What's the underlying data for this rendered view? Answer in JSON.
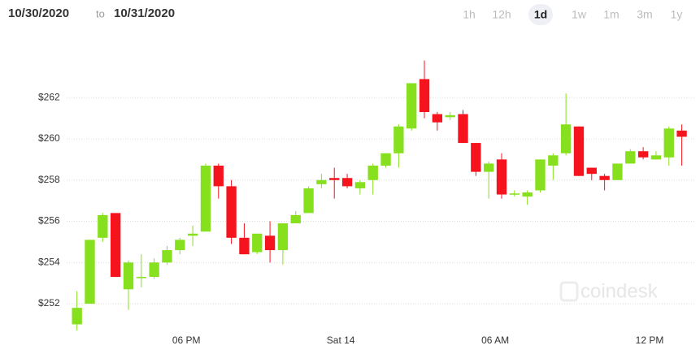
{
  "header": {
    "from": "10/30/2020",
    "to_word": "to",
    "to": "10/31/2020",
    "ranges": [
      "1h",
      "12h",
      "1d",
      "1w",
      "1m",
      "3m",
      "1y"
    ],
    "active": "1d"
  },
  "chart_data": {
    "type": "candlestick",
    "watermark": "coindesk",
    "up_color": "#86e01e",
    "down_color": "#f5141e",
    "grid": true,
    "x": [
      13.75,
      14.25,
      14.75,
      15.25,
      15.75,
      16.25,
      16.75,
      17.25,
      17.75,
      18.25,
      18.75,
      19.25,
      19.75,
      20.25,
      20.75,
      21.25,
      21.75,
      22.25,
      22.75,
      23.25,
      23.75,
      24.25,
      24.75,
      25.25,
      25.75,
      26.25,
      26.75,
      27.25,
      27.75,
      28.25,
      28.75,
      29.25,
      29.75,
      30.25,
      30.75,
      31.25,
      31.75,
      32.25,
      32.75,
      33.25,
      33.75,
      34.25,
      34.75,
      35.25,
      35.75,
      36.25,
      36.75,
      37.25
    ],
    "open": [
      251.0,
      252.0,
      255.2,
      256.4,
      252.7,
      253.3,
      253.3,
      254.0,
      254.6,
      255.3,
      255.5,
      258.7,
      257.7,
      255.2,
      254.5,
      255.3,
      254.6,
      255.9,
      256.4,
      257.8,
      258.1,
      258.1,
      257.6,
      258.0,
      258.7,
      259.3,
      260.5,
      262.9,
      261.2,
      261.05,
      261.2,
      259.8,
      258.4,
      259.0,
      257.3,
      257.2,
      257.5,
      258.7,
      259.3,
      260.6,
      258.6,
      258.2,
      258.0,
      258.8,
      259.4,
      259.0,
      259.1,
      260.4
    ],
    "high": [
      252.6,
      255.1,
      256.4,
      256.4,
      254.1,
      254.4,
      254.2,
      254.8,
      255.2,
      255.8,
      258.8,
      258.8,
      258.0,
      255.9,
      255.4,
      256.0,
      255.9,
      256.5,
      257.7,
      258.3,
      258.6,
      258.3,
      258.0,
      258.8,
      259.3,
      260.7,
      262.7,
      263.8,
      261.3,
      261.3,
      261.4,
      259.8,
      258.9,
      259.3,
      257.5,
      257.5,
      259.0,
      259.3,
      262.2,
      260.6,
      258.6,
      258.3,
      258.8,
      259.5,
      259.6,
      259.4,
      260.6,
      260.7
    ],
    "low": [
      250.7,
      252.0,
      255.0,
      253.3,
      251.7,
      252.8,
      253.2,
      253.9,
      254.4,
      254.8,
      255.5,
      257.1,
      254.9,
      254.4,
      254.4,
      254.0,
      253.9,
      255.9,
      256.4,
      257.6,
      257.1,
      257.6,
      257.3,
      257.3,
      258.6,
      258.6,
      260.4,
      261.0,
      260.4,
      260.9,
      259.8,
      258.2,
      257.1,
      257.1,
      257.2,
      256.8,
      257.4,
      258.0,
      259.2,
      258.2,
      258.0,
      257.5,
      258.0,
      258.8,
      259.0,
      259.0,
      258.7,
      258.7
    ],
    "close": [
      251.8,
      255.1,
      256.3,
      253.3,
      254.0,
      253.3,
      254.0,
      254.6,
      255.1,
      255.4,
      258.7,
      257.7,
      255.2,
      254.4,
      255.4,
      254.6,
      255.9,
      256.3,
      257.6,
      258.0,
      258.0,
      257.7,
      257.9,
      258.7,
      259.3,
      260.6,
      262.7,
      261.3,
      260.8,
      261.15,
      259.8,
      258.4,
      258.8,
      257.3,
      257.35,
      257.4,
      259.0,
      259.2,
      260.7,
      258.2,
      258.3,
      258.0,
      258.8,
      259.4,
      259.1,
      259.2,
      260.5,
      260.1
    ],
    "xlim": [
      13.35,
      37.8
    ],
    "xticks": [
      {
        "value": 18,
        "label": "06 PM"
      },
      {
        "value": 24,
        "label": "Sat 14"
      },
      {
        "value": 30,
        "label": "06 AM"
      },
      {
        "value": 36,
        "label": "12 PM"
      }
    ],
    "ylim": [
      250.9,
      263.9
    ],
    "yticks": [
      {
        "value": 252,
        "label": "$252"
      },
      {
        "value": 254,
        "label": "$254"
      },
      {
        "value": 256,
        "label": "$256"
      },
      {
        "value": 258,
        "label": "$258"
      },
      {
        "value": 260,
        "label": "$260"
      },
      {
        "value": 262,
        "label": "$262"
      }
    ]
  }
}
